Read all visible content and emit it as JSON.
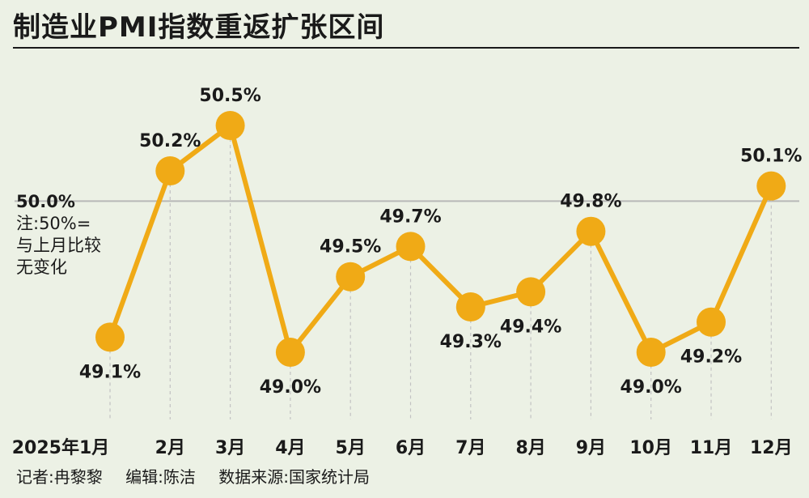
{
  "title": "制造业PMI指数重返扩张区间",
  "reference": {
    "value_label": "50.0%",
    "note_lines": [
      "注:50%=",
      "与上月比较",
      "无变化"
    ]
  },
  "footer": {
    "reporter": "记者:冉黎黎",
    "editor": "编辑:陈洁",
    "source": "数据来源:国家统计局"
  },
  "colors": {
    "line": "#f0aa16",
    "background": "#ecf1e5",
    "text": "#1a1a1a",
    "reference_line": "#b8b8b8"
  },
  "chart_data": {
    "type": "line",
    "title": "制造业PMI指数重返扩张区间",
    "categories": [
      "2025年1月",
      "2月",
      "3月",
      "4月",
      "5月",
      "6月",
      "7月",
      "8月",
      "9月",
      "10月",
      "11月",
      "12月"
    ],
    "values": [
      49.1,
      50.2,
      50.5,
      49.0,
      49.5,
      49.7,
      49.3,
      49.4,
      49.8,
      49.0,
      49.2,
      50.1
    ],
    "data_labels": [
      "49.1%",
      "50.2%",
      "50.5%",
      "49.0%",
      "49.5%",
      "49.7%",
      "49.3%",
      "49.4%",
      "49.8%",
      "49.0%",
      "49.2%",
      "50.1%"
    ],
    "label_position": [
      "below",
      "above",
      "above",
      "below",
      "above",
      "above",
      "below",
      "below",
      "above",
      "below",
      "below",
      "above"
    ],
    "reference_value": 50.0,
    "unit": "%",
    "grid": false,
    "legend": "none"
  }
}
